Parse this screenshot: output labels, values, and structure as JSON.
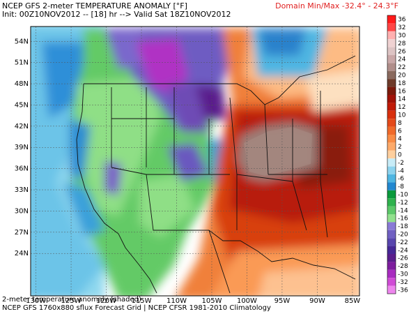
{
  "header": {
    "title": "NCEP GFS 2-meter TEMPERATURE ANOMALY [°F]",
    "subtitle": "Init: 00Z10NOV2012 -- [18] hr --> Valid Sat 18Z10NOV2012",
    "domain_minmax": "Domain Min/Max  -32.4°  -  24.3°F"
  },
  "footer": {
    "line1": "2-meter temperature anomaly (shaded)",
    "line2": "NCEP GFS 1760x880 sflux Forecast Grid | NCEP CFSR 1981-2010 Climatology"
  },
  "map": {
    "lat_labels": [
      "54N",
      "51N",
      "48N",
      "45N",
      "42N",
      "39N",
      "36N",
      "33N",
      "30N",
      "27N",
      "24N"
    ],
    "lon_labels": [
      "130W",
      "125W",
      "120W",
      "115W",
      "110W",
      "105W",
      "100W",
      "95W",
      "90W",
      "85W"
    ]
  },
  "colorbar": {
    "labels": [
      "36",
      "32",
      "30",
      "28",
      "26",
      "24",
      "22",
      "20",
      "18",
      "16",
      "14",
      "12",
      "10",
      "8",
      "6",
      "4",
      "2",
      "0",
      "-2",
      "-4",
      "-6",
      "-8",
      "-10",
      "-12",
      "-14",
      "-16",
      "-18",
      "-20",
      "-22",
      "-24",
      "-26",
      "-28",
      "-30",
      "-32",
      "-36"
    ],
    "colors": [
      "#ff1a1a",
      "#ff4545",
      "#ffb0b0",
      "#efd2d2",
      "#ddc4c4",
      "#caa8a8",
      "#b08e8a",
      "#8a6a5e",
      "#6e3b2a",
      "#7b1a0c",
      "#a01208",
      "#c01a08",
      "#d8300e",
      "#e44a1a",
      "#f06a2a",
      "#f98c46",
      "#fdaa6a",
      "#fecf9e",
      "#c8ecf7",
      "#8dd3ee",
      "#4fb6e2",
      "#2288d0",
      "#0a9a3c",
      "#2fb24e",
      "#5cc86a",
      "#92e08e",
      "#8a7ad6",
      "#7060c2",
      "#5846ae",
      "#462896",
      "#5a1e8c",
      "#7e1e9e",
      "#a82cc0",
      "#d04cd6",
      "#ee86ee"
    ]
  }
}
